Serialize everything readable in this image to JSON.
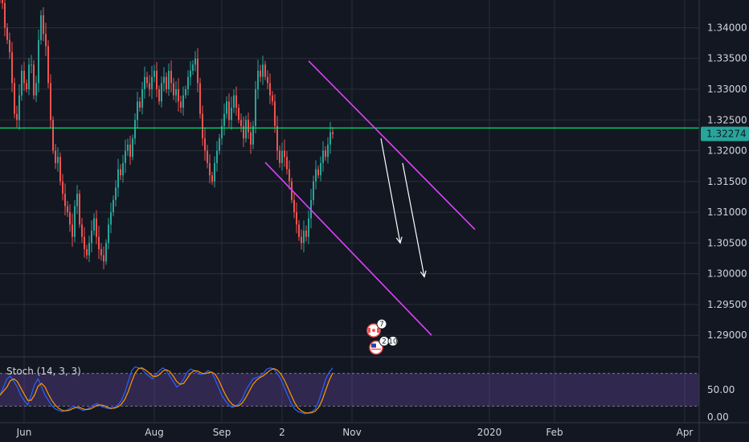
{
  "chart_data": {
    "type": "candlestick",
    "y_axis": {
      "ticks": [
        "1.34000",
        "1.33500",
        "1.33000",
        "1.32500",
        "1.32000",
        "1.31500",
        "1.31000",
        "1.30500",
        "1.30000",
        "1.29500",
        "1.29000"
      ],
      "range": [
        1.2865,
        1.3445
      ]
    },
    "x_axis": {
      "ticks": [
        {
          "label": "Jun",
          "index": 10
        },
        {
          "label": "Aug",
          "index": 64
        },
        {
          "label": "Sep",
          "index": 92
        },
        {
          "label": "2",
          "index": 117
        },
        {
          "label": "Nov",
          "index": 146
        },
        {
          "label": "2020",
          "index": 203
        },
        {
          "label": "Feb",
          "index": 230
        },
        {
          "label": "Apr",
          "index": 284
        }
      ]
    },
    "candle_closes": [
      1.3445,
      1.344,
      1.34,
      1.338,
      1.336,
      1.331,
      1.326,
      1.325,
      1.329,
      1.333,
      1.331,
      1.33,
      1.334,
      1.334,
      1.329,
      1.331,
      1.338,
      1.342,
      1.339,
      1.337,
      1.331,
      1.325,
      1.32,
      1.318,
      1.319,
      1.315,
      1.313,
      1.311,
      1.31,
      1.308,
      1.306,
      1.311,
      1.313,
      1.308,
      1.306,
      1.304,
      1.303,
      1.305,
      1.307,
      1.309,
      1.306,
      1.304,
      1.303,
      1.302,
      1.305,
      1.308,
      1.31,
      1.312,
      1.314,
      1.317,
      1.316,
      1.318,
      1.32,
      1.321,
      1.319,
      1.322,
      1.325,
      1.328,
      1.327,
      1.33,
      1.332,
      1.331,
      1.33,
      1.332,
      1.333,
      1.33,
      1.328,
      1.331,
      1.332,
      1.33,
      1.333,
      1.331,
      1.329,
      1.33,
      1.328,
      1.327,
      1.329,
      1.33,
      1.332,
      1.333,
      1.334,
      1.335,
      1.331,
      1.326,
      1.322,
      1.32,
      1.318,
      1.316,
      1.315,
      1.318,
      1.32,
      1.322,
      1.324,
      1.326,
      1.328,
      1.325,
      1.327,
      1.329,
      1.327,
      1.325,
      1.324,
      1.322,
      1.325,
      1.323,
      1.321,
      1.324,
      1.33,
      1.333,
      1.332,
      1.334,
      1.332,
      1.331,
      1.329,
      1.328,
      1.324,
      1.32,
      1.318,
      1.32,
      1.319,
      1.317,
      1.315,
      1.312,
      1.31,
      1.308,
      1.306,
      1.305,
      1.307,
      1.306,
      1.309,
      1.312,
      1.315,
      1.317,
      1.316,
      1.318,
      1.32,
      1.319,
      1.321,
      1.323,
      1.3227
    ],
    "current_price": {
      "label": "1.32274",
      "value": 1.32274
    },
    "horizontal_line": {
      "value": 1.3237,
      "color": "#00e676"
    },
    "channel_lines": [
      {
        "from": [
          128,
          1.3346
        ],
        "to": [
          197,
          1.3072
        ],
        "color": "#e040fb"
      },
      {
        "from": [
          110,
          1.3181
        ],
        "to": [
          179,
          1.29
        ],
        "color": "#e040fb"
      }
    ],
    "forecast_arrows": [
      {
        "from": [
          158,
          1.322
        ],
        "to": [
          166,
          1.305
        ],
        "color": "#ffffff"
      },
      {
        "from": [
          167,
          1.318
        ],
        "to": [
          176,
          1.2995
        ],
        "color": "#ffffff"
      }
    ],
    "event_badges": [
      {
        "index": 155,
        "value": 1.2908,
        "counts": [
          "7"
        ],
        "flag": "ca"
      },
      {
        "index": 156,
        "value": 1.288,
        "counts": [
          "2",
          "10"
        ],
        "flag": "us"
      }
    ],
    "indicator": {
      "title": "Stoch (14, 3, 3)",
      "ticks": [
        "50.00",
        "0.00"
      ],
      "band": [
        20,
        80
      ],
      "k_color": "#2962ff",
      "d_color": "#ff9800",
      "k_values": [
        40,
        55,
        70,
        75,
        65,
        55,
        40,
        30,
        22,
        40,
        60,
        70,
        55,
        40,
        30,
        20,
        15,
        12,
        10,
        12,
        15,
        20,
        18,
        15,
        12,
        14,
        18,
        22,
        25,
        20,
        18,
        16,
        15,
        18,
        22,
        30,
        45,
        65,
        85,
        92,
        90,
        88,
        80,
        75,
        70,
        78,
        85,
        90,
        85,
        75,
        65,
        55,
        60,
        70,
        82,
        88,
        85,
        80,
        78,
        80,
        85,
        82,
        70,
        55,
        40,
        30,
        22,
        18,
        20,
        25,
        35,
        50,
        60,
        70,
        72,
        75,
        80,
        88,
        90,
        88,
        80,
        70,
        55,
        40,
        25,
        15,
        10,
        8,
        6,
        8,
        10,
        15,
        30,
        50,
        70,
        82,
        90
      ]
    },
    "colors": {
      "up": "#26a69a",
      "down": "#ef5350",
      "background": "#131722",
      "grid": "#2a2e39",
      "band": "#7e57c2"
    }
  }
}
